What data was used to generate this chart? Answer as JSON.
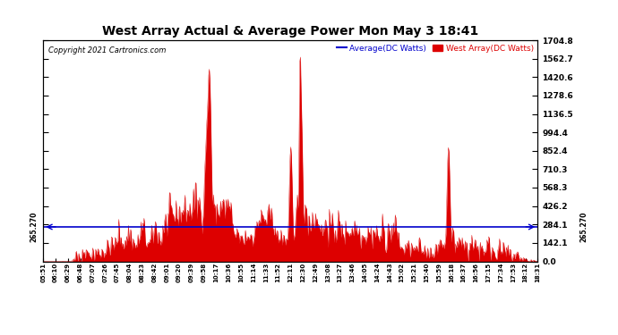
{
  "title": "West Array Actual & Average Power Mon May 3 18:41",
  "copyright": "Copyright 2021 Cartronics.com",
  "legend_avg": "Average(DC Watts)",
  "legend_west": "West Array(DC Watts)",
  "avg_value": 265.27,
  "yticks": [
    0.0,
    142.1,
    284.1,
    426.2,
    568.3,
    710.3,
    852.4,
    994.4,
    1136.5,
    1278.6,
    1420.6,
    1562.7,
    1704.8
  ],
  "ymax": 1704.8,
  "ymin": 0.0,
  "bg_color": "#ffffff",
  "fill_color": "#dd0000",
  "avg_line_color": "#0000cc",
  "xtick_labels": [
    "05:51",
    "06:10",
    "06:29",
    "06:48",
    "07:07",
    "07:26",
    "07:45",
    "08:04",
    "08:23",
    "08:42",
    "09:01",
    "09:20",
    "09:39",
    "09:58",
    "10:17",
    "10:36",
    "10:55",
    "11:14",
    "11:33",
    "11:52",
    "12:11",
    "12:30",
    "12:49",
    "13:08",
    "13:27",
    "13:46",
    "14:05",
    "14:24",
    "14:43",
    "15:02",
    "15:21",
    "15:40",
    "15:59",
    "16:18",
    "16:37",
    "16:56",
    "17:15",
    "17:34",
    "17:53",
    "18:12",
    "18:31"
  ],
  "num_points": 820
}
